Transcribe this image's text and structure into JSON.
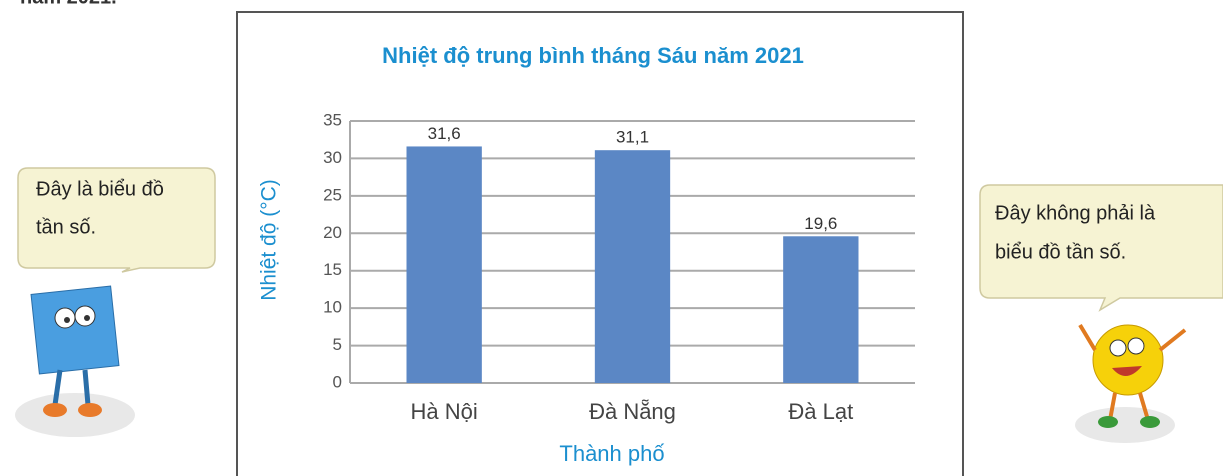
{
  "header_fragment": "năm 2021.",
  "chart_data": {
    "type": "bar",
    "title": "Nhiệt độ trung bình tháng Sáu năm 2021",
    "x_label": "Thành phố",
    "y_label": "Nhiệt độ (°C)",
    "categories": [
      "Hà Nội",
      "Đà Nẵng",
      "Đà Lạt"
    ],
    "values": [
      31.6,
      31.1,
      19.6
    ],
    "value_labels": [
      "31,6",
      "31,1",
      "19,6"
    ],
    "color": "#5b87c5",
    "ylim": [
      0,
      35
    ],
    "yticks": [
      0,
      5,
      10,
      15,
      20,
      25,
      30,
      35
    ],
    "grid": true
  },
  "speech_bubbles": [
    {
      "lines": [
        "Đây là biểu đồ",
        "tần số."
      ]
    },
    {
      "lines": [
        "Đây không phải là",
        "biểu đồ tần số."
      ]
    }
  ]
}
